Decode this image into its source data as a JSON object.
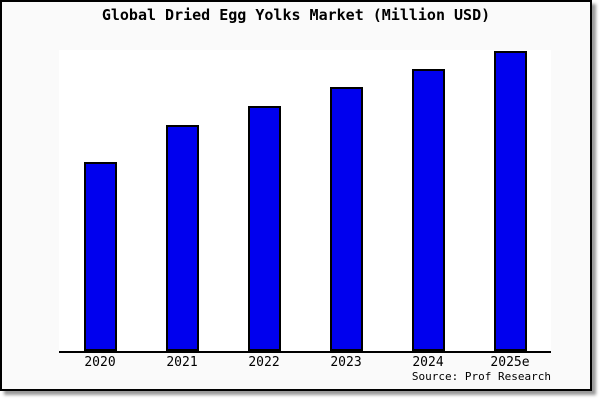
{
  "chart_data": {
    "type": "bar",
    "title": "Global Dried Egg Yolks Market (Million USD)",
    "unit": "Million USD",
    "categories": [
      "2020",
      "2021",
      "2022",
      "2023",
      "2024",
      "2025e"
    ],
    "values": [
      63.0,
      75.3,
      81.7,
      88.0,
      94.0,
      100.0
    ],
    "values_note": "No y-axis ticks/gridlines are shown in the chart; values are bar heights normalized to the 2025e bar = 100.",
    "source": "Source: Prof Research",
    "bar_color": "#0000ee",
    "bar_border_color": "#000000",
    "layout": {
      "grid": false,
      "y_axis_labels": false,
      "legend": false,
      "plot_background": "#ffffff",
      "figure_background": "#fafafa",
      "figure_border": "#000000"
    }
  }
}
